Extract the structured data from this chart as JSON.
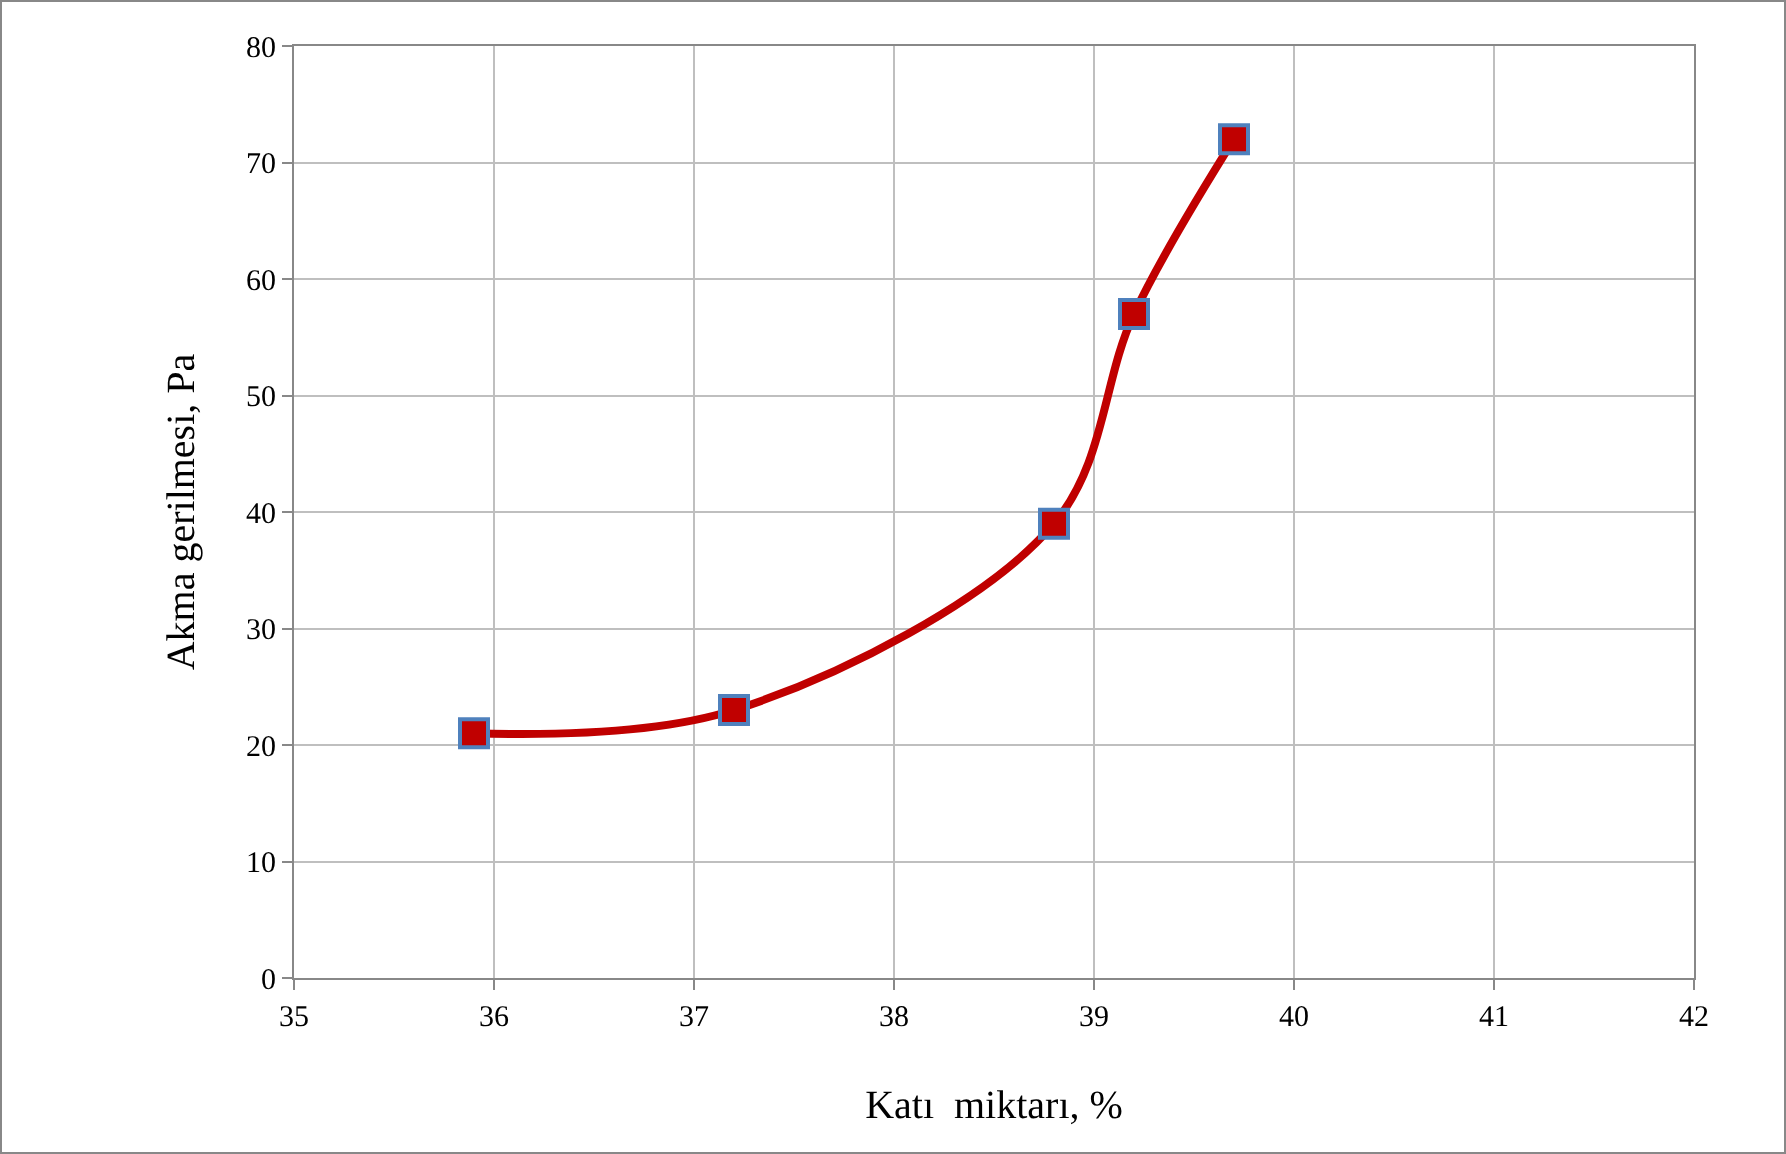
{
  "chart_data": {
    "type": "line",
    "xlabel": "Katı  miktarı, %",
    "ylabel": "Akma gerilmesi, Pa",
    "x": [
      35.9,
      37.2,
      38.8,
      39.2,
      39.7
    ],
    "series": [
      {
        "color": "#c00000",
        "values": [
          21,
          23,
          39,
          57,
          72
        ]
      }
    ],
    "xlim": [
      35,
      42
    ],
    "xticks": [
      35,
      36,
      37,
      38,
      39,
      40,
      41,
      42
    ],
    "ylim": [
      0,
      80
    ],
    "yticks": [
      0,
      10,
      20,
      30,
      40,
      50,
      60,
      70,
      80
    ],
    "grid": true,
    "legend": false,
    "marker": "square",
    "line_style": "solid"
  }
}
